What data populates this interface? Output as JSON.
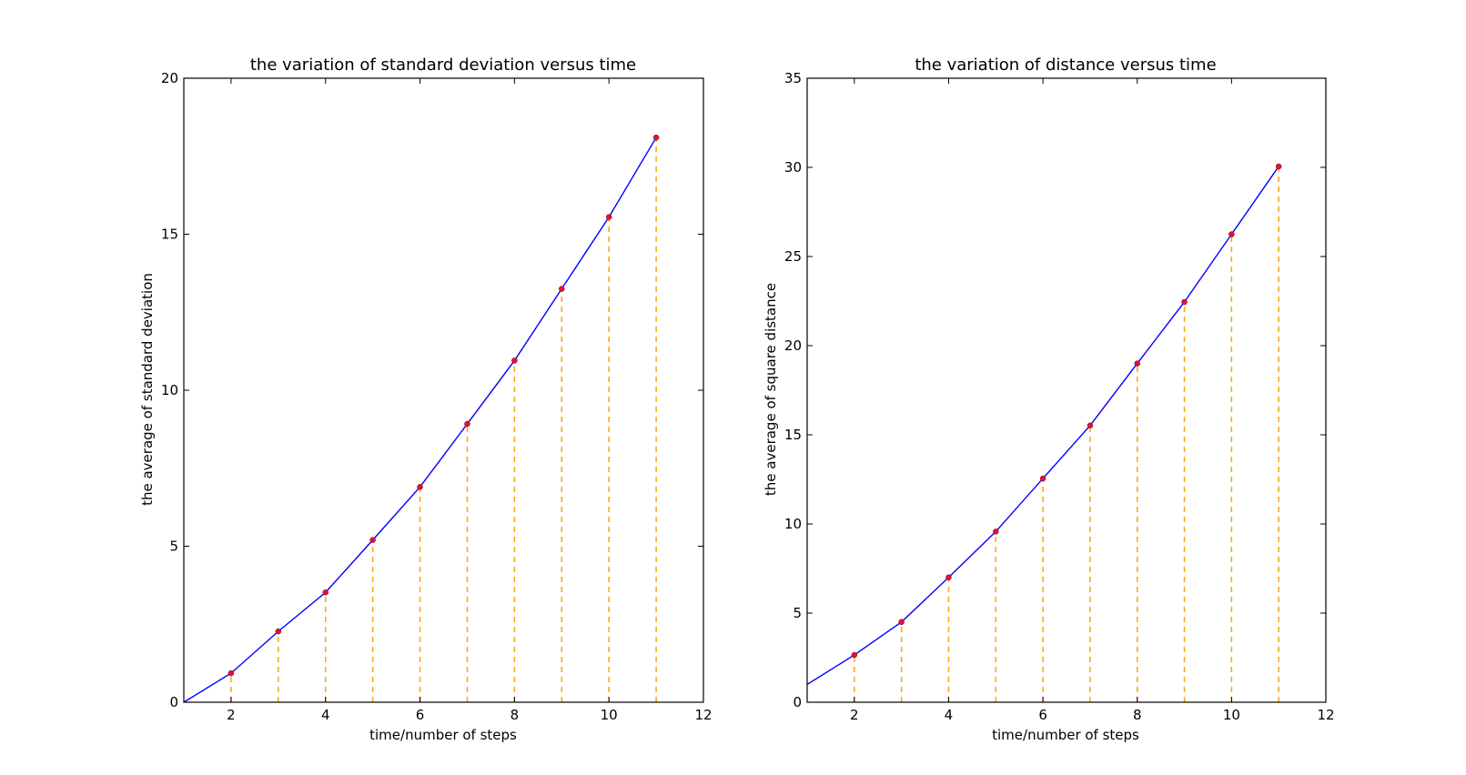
{
  "chart_data": [
    {
      "type": "line",
      "title": "the variation of standard deviation versus time",
      "xlabel": "time/number of steps",
      "ylabel": "the average of standard deviation",
      "xlim": [
        1,
        12
      ],
      "ylim": [
        0,
        20
      ],
      "xticks": [
        2,
        4,
        6,
        8,
        10,
        12
      ],
      "xtick_labels": [
        "2",
        "4",
        "6",
        "8",
        "10",
        "12"
      ],
      "yticks": [
        0,
        5,
        10,
        15,
        20
      ],
      "ytick_labels": [
        "0",
        "5",
        "10",
        "15",
        "20"
      ],
      "grid": false,
      "series": [
        {
          "x": [
            1,
            2,
            3,
            4,
            5,
            6,
            7,
            8,
            9,
            10,
            11
          ],
          "values": [
            0.0,
            0.93,
            2.27,
            3.52,
            5.2,
            6.9,
            8.92,
            10.95,
            13.25,
            15.55,
            18.1
          ],
          "color": "#0000ff",
          "marker_color": "#dc143c",
          "marker_from_index": 1,
          "stem_color": "#ffa500"
        }
      ]
    },
    {
      "type": "line",
      "title": "the variation of distance versus time",
      "xlabel": "time/number of steps",
      "ylabel": "the average of square distance",
      "xlim": [
        1,
        12
      ],
      "ylim": [
        0,
        35
      ],
      "xticks": [
        2,
        4,
        6,
        8,
        10,
        12
      ],
      "xtick_labels": [
        "2",
        "4",
        "6",
        "8",
        "10",
        "12"
      ],
      "yticks": [
        0,
        5,
        10,
        15,
        20,
        25,
        30,
        35
      ],
      "ytick_labels": [
        "0",
        "5",
        "10",
        "15",
        "20",
        "25",
        "30",
        "35"
      ],
      "grid": false,
      "series": [
        {
          "x": [
            1,
            2,
            3,
            4,
            5,
            6,
            7,
            8,
            9,
            10,
            11
          ],
          "values": [
            1.0,
            2.65,
            4.5,
            7.0,
            9.57,
            12.55,
            15.52,
            19.0,
            22.45,
            26.25,
            30.05
          ],
          "color": "#0000ff",
          "marker_color": "#dc143c",
          "marker_from_index": 1,
          "stem_color": "#ffa500"
        }
      ]
    }
  ]
}
